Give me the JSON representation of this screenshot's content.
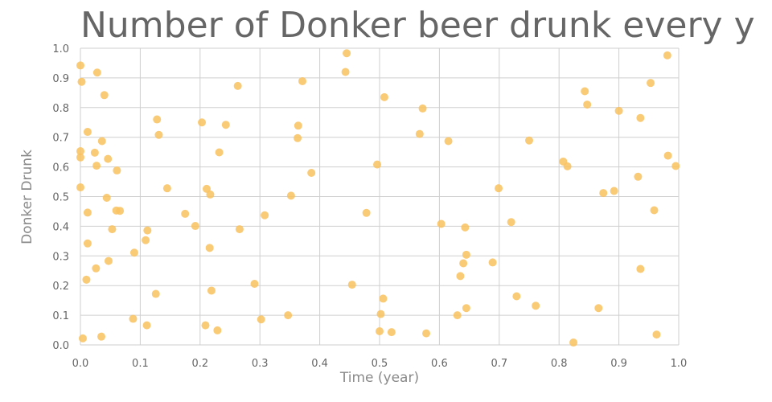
{
  "chart_data": {
    "type": "scatter",
    "title": "Number of Donker beer drunk every y",
    "xlabel": "Time (year)",
    "ylabel": "Donker Drunk",
    "xlim": [
      0,
      1
    ],
    "ylim": [
      0,
      1
    ],
    "x_ticks": [
      "0.0",
      "0.1",
      "0.2",
      "0.3",
      "0.4",
      "0.5",
      "0.6",
      "0.7",
      "0.8",
      "0.9",
      "1.0"
    ],
    "y_ticks": [
      "0.0",
      "0.1",
      "0.2",
      "0.3",
      "0.4",
      "0.5",
      "0.6",
      "0.7",
      "0.8",
      "0.9",
      "1.0"
    ],
    "grid": true,
    "marker_color": "#F9C25F",
    "series": [
      {
        "points": [
          [
            0.0,
            0.942
          ],
          [
            0.002,
            0.887
          ],
          [
            0.028,
            0.918
          ],
          [
            0.04,
            0.842
          ],
          [
            0.012,
            0.718
          ],
          [
            0.036,
            0.687
          ],
          [
            0.0,
            0.653
          ],
          [
            0.024,
            0.648
          ],
          [
            0.046,
            0.627
          ],
          [
            0.0,
            0.632
          ],
          [
            0.027,
            0.604
          ],
          [
            0.061,
            0.588
          ],
          [
            0.0,
            0.531
          ],
          [
            0.044,
            0.496
          ],
          [
            0.06,
            0.453
          ],
          [
            0.066,
            0.452
          ],
          [
            0.012,
            0.446
          ],
          [
            0.053,
            0.39
          ],
          [
            0.012,
            0.342
          ],
          [
            0.047,
            0.283
          ],
          [
            0.026,
            0.258
          ],
          [
            0.01,
            0.22
          ],
          [
            0.004,
            0.022
          ],
          [
            0.035,
            0.028
          ],
          [
            0.128,
            0.76
          ],
          [
            0.131,
            0.708
          ],
          [
            0.145,
            0.528
          ],
          [
            0.112,
            0.386
          ],
          [
            0.109,
            0.353
          ],
          [
            0.09,
            0.311
          ],
          [
            0.126,
            0.172
          ],
          [
            0.088,
            0.088
          ],
          [
            0.111,
            0.066
          ],
          [
            0.203,
            0.75
          ],
          [
            0.243,
            0.742
          ],
          [
            0.263,
            0.873
          ],
          [
            0.232,
            0.649
          ],
          [
            0.211,
            0.526
          ],
          [
            0.217,
            0.507
          ],
          [
            0.175,
            0.442
          ],
          [
            0.192,
            0.401
          ],
          [
            0.266,
            0.39
          ],
          [
            0.216,
            0.327
          ],
          [
            0.219,
            0.183
          ],
          [
            0.209,
            0.066
          ],
          [
            0.229,
            0.049
          ],
          [
            0.371,
            0.889
          ],
          [
            0.364,
            0.739
          ],
          [
            0.363,
            0.697
          ],
          [
            0.386,
            0.58
          ],
          [
            0.352,
            0.503
          ],
          [
            0.308,
            0.437
          ],
          [
            0.291,
            0.206
          ],
          [
            0.302,
            0.086
          ],
          [
            0.347,
            0.1
          ],
          [
            0.445,
            0.983
          ],
          [
            0.443,
            0.92
          ],
          [
            0.496,
            0.608
          ],
          [
            0.478,
            0.445
          ],
          [
            0.454,
            0.203
          ],
          [
            0.508,
            0.835
          ],
          [
            0.506,
            0.156
          ],
          [
            0.502,
            0.104
          ],
          [
            0.5,
            0.046
          ],
          [
            0.52,
            0.043
          ],
          [
            0.572,
            0.797
          ],
          [
            0.567,
            0.711
          ],
          [
            0.578,
            0.039
          ],
          [
            0.615,
            0.687
          ],
          [
            0.603,
            0.408
          ],
          [
            0.643,
            0.396
          ],
          [
            0.645,
            0.304
          ],
          [
            0.64,
            0.275
          ],
          [
            0.635,
            0.232
          ],
          [
            0.645,
            0.124
          ],
          [
            0.63,
            0.1
          ],
          [
            0.699,
            0.528
          ],
          [
            0.72,
            0.414
          ],
          [
            0.689,
            0.278
          ],
          [
            0.729,
            0.164
          ],
          [
            0.761,
            0.132
          ],
          [
            0.75,
            0.689
          ],
          [
            0.843,
            0.855
          ],
          [
            0.847,
            0.81
          ],
          [
            0.807,
            0.618
          ],
          [
            0.814,
            0.602
          ],
          [
            0.874,
            0.512
          ],
          [
            0.892,
            0.519
          ],
          [
            0.866,
            0.124
          ],
          [
            0.824,
            0.008
          ],
          [
            0.981,
            0.976
          ],
          [
            0.953,
            0.883
          ],
          [
            0.9,
            0.789
          ],
          [
            0.936,
            0.765
          ],
          [
            0.982,
            0.638
          ],
          [
            0.995,
            0.603
          ],
          [
            0.932,
            0.567
          ],
          [
            0.959,
            0.454
          ],
          [
            0.936,
            0.256
          ],
          [
            0.963,
            0.035
          ]
        ]
      }
    ]
  }
}
